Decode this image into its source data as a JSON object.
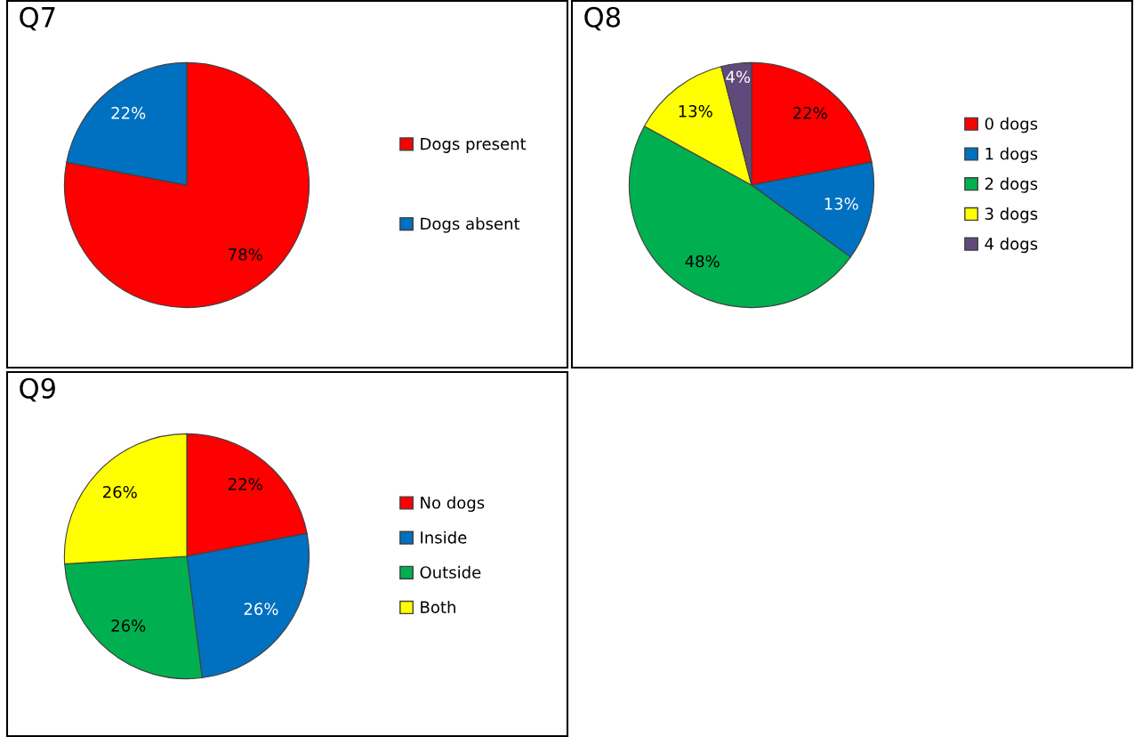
{
  "chart_data": [
    {
      "type": "pie",
      "title": "Q7",
      "categories": [
        "Dogs present",
        "Dogs absent"
      ],
      "values": [
        78,
        22
      ],
      "colors": [
        "#ff0000",
        "#0070c0"
      ],
      "value_labels": [
        "78%",
        "22%"
      ],
      "legend": "right"
    },
    {
      "type": "pie",
      "title": "Q8",
      "categories": [
        "0 dogs",
        "1 dogs",
        "2 dogs",
        "3 dogs",
        "4 dogs"
      ],
      "values": [
        22,
        13,
        48,
        13,
        4
      ],
      "colors": [
        "#ff0000",
        "#0070c0",
        "#00b050",
        "#ffff00",
        "#604a7b"
      ],
      "value_labels": [
        "22%",
        "13%",
        "48%",
        "13%",
        "4%"
      ],
      "legend": "right"
    },
    {
      "type": "pie",
      "title": "Q9",
      "categories": [
        "No dogs",
        "Inside",
        "Outside",
        "Both"
      ],
      "values": [
        22,
        26,
        26,
        26
      ],
      "colors": [
        "#ff0000",
        "#0070c0",
        "#00b050",
        "#ffff00"
      ],
      "value_labels": [
        "22%",
        "26%",
        "26%",
        "26%"
      ],
      "legend": "right"
    }
  ]
}
